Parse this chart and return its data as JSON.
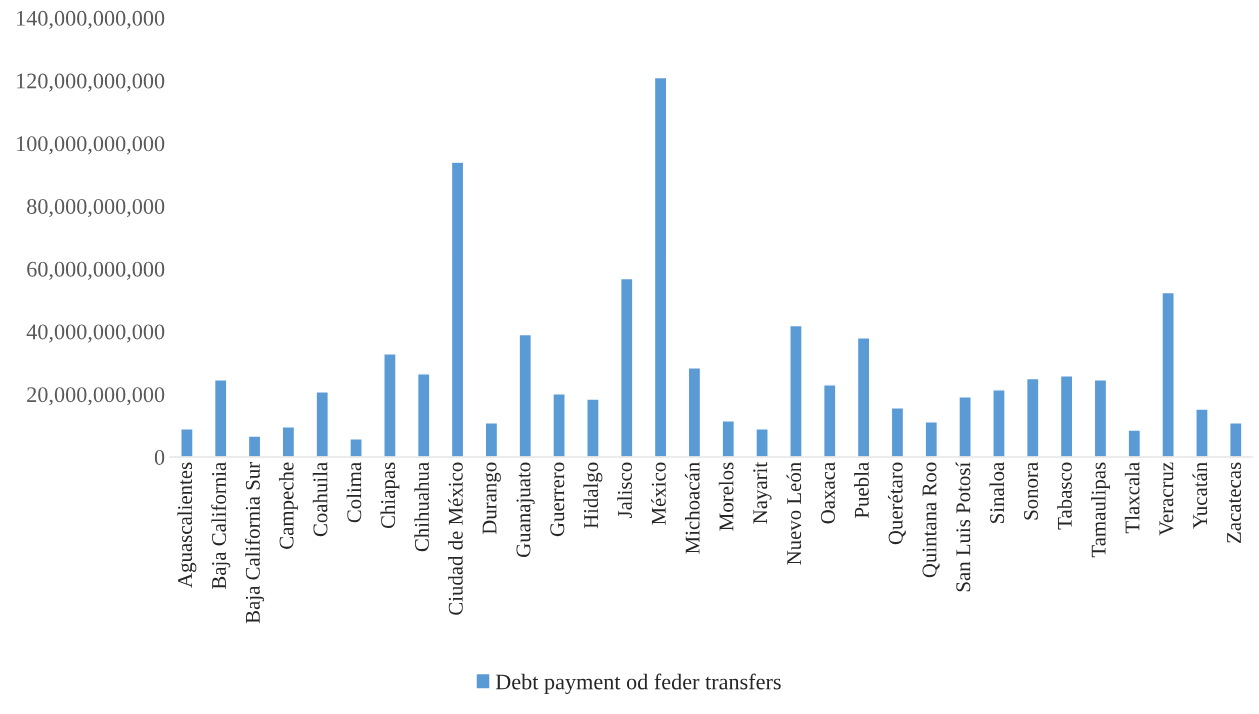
{
  "chart_data": {
    "type": "bar",
    "categories": [
      "Aguascalientes",
      "Baja California",
      "Baja California Sur",
      "Campeche",
      "Coahuila",
      "Colima",
      "Chiapas",
      "Chihuahua",
      "Ciudad de México",
      "Durango",
      "Guanajuato",
      "Guerrero",
      "Hidalgo",
      "Jalisco",
      "México",
      "Michoacán",
      "Morelos",
      "Nayarit",
      "Nuevo León",
      "Oaxaca",
      "Puebla",
      "Querétaro",
      "Quintana Roo",
      "San Luis Potosí",
      "Sinaloa",
      "Sonora",
      "Tabasco",
      "Tamaulipas",
      "Tlaxcala",
      "Veracruz",
      "Yucatán",
      "Zacatecas"
    ],
    "series": [
      {
        "name": "Debt payment od feder transfers",
        "color": "#5b9bd5",
        "values": [
          9000000000,
          24600000000,
          6700000000,
          9600000000,
          20800000000,
          5800000000,
          32900000000,
          26500000000,
          94000000000,
          10900000000,
          39000000000,
          20100000000,
          18500000000,
          56900000000,
          121000000000,
          28400000000,
          11500000000,
          9000000000,
          41900000000,
          23000000000,
          38000000000,
          15700000000,
          11200000000,
          19200000000,
          21400000000,
          25000000000,
          25900000000,
          24600000000,
          8600000000,
          52400000000,
          15300000000,
          10900000000
        ]
      }
    ],
    "ylim": [
      0,
      140000000000
    ],
    "yticks": [
      {
        "value": 0,
        "label": "0"
      },
      {
        "value": 20000000000,
        "label": "20,000,000,000"
      },
      {
        "value": 40000000000,
        "label": "40,000,000,000"
      },
      {
        "value": 60000000000,
        "label": "60,000,000,000"
      },
      {
        "value": 80000000000,
        "label": "80,000,000,000"
      },
      {
        "value": 100000000000,
        "label": "100,000,000,000"
      },
      {
        "value": 120000000000,
        "label": "120,000,000,000"
      },
      {
        "value": 140000000000,
        "label": "140,000,000,000"
      }
    ],
    "grid": false,
    "legend": "bottom"
  }
}
